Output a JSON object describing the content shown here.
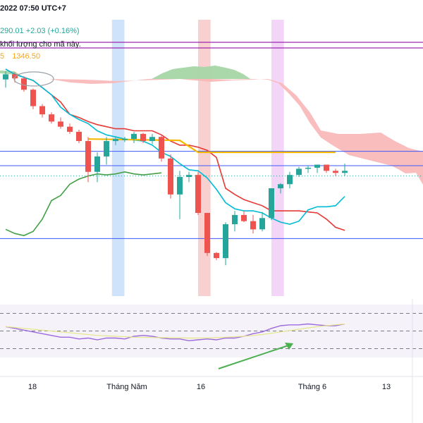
{
  "header": {
    "date_text": "2022 07:50 UTC+7",
    "price_text": "290.01  +2.03 (+0.16%)",
    "notice_text": "khối lượng cho mã này.",
    "ma_prefix": "5",
    "ma_value": "1346.50",
    "ma_color": "#f5a623"
  },
  "colors": {
    "up": "#26a69a",
    "down": "#ef5350",
    "tenkan": "#00bcd4",
    "kijun": "#e53935",
    "senkou_b_flat": "#f5b800",
    "chikou": "#43a047",
    "rsi": "#9c6ade",
    "rsi_ma": "#e6e68a",
    "cloud_bull": "#a5d6a7",
    "cloud_bear": "#f8b6b6",
    "arrow": "#4caf50"
  },
  "chart_data": [
    {
      "type": "candlestick",
      "title": "",
      "x_tick_labels": [
        "18",
        "Tháng Năm",
        "16",
        "Tháng 6",
        "13"
      ],
      "candles": [
        {
          "o": 1326,
          "h": 1334,
          "l": 1318,
          "c": 1331
        },
        {
          "o": 1331,
          "h": 1333,
          "l": 1323,
          "c": 1327
        },
        {
          "o": 1327,
          "h": 1329,
          "l": 1314,
          "c": 1316
        },
        {
          "o": 1316,
          "h": 1317,
          "l": 1297,
          "c": 1300
        },
        {
          "o": 1300,
          "h": 1302,
          "l": 1289,
          "c": 1292
        },
        {
          "o": 1292,
          "h": 1294,
          "l": 1283,
          "c": 1285
        },
        {
          "o": 1285,
          "h": 1289,
          "l": 1278,
          "c": 1280
        },
        {
          "o": 1280,
          "h": 1283,
          "l": 1273,
          "c": 1275
        },
        {
          "o": 1275,
          "h": 1277,
          "l": 1264,
          "c": 1266
        },
        {
          "o": 1266,
          "h": 1270,
          "l": 1226,
          "c": 1236
        },
        {
          "o": 1236,
          "h": 1255,
          "l": 1226,
          "c": 1251
        },
        {
          "o": 1251,
          "h": 1270,
          "l": 1243,
          "c": 1266
        },
        {
          "o": 1266,
          "h": 1270,
          "l": 1262,
          "c": 1268
        },
        {
          "o": 1267,
          "h": 1270,
          "l": 1265,
          "c": 1268
        },
        {
          "o": 1268,
          "h": 1275,
          "l": 1264,
          "c": 1273
        },
        {
          "o": 1273,
          "h": 1274,
          "l": 1264,
          "c": 1266
        },
        {
          "o": 1266,
          "h": 1273,
          "l": 1263,
          "c": 1270
        },
        {
          "o": 1270,
          "h": 1271,
          "l": 1246,
          "c": 1249
        },
        {
          "o": 1249,
          "h": 1253,
          "l": 1210,
          "c": 1214
        },
        {
          "o": 1214,
          "h": 1237,
          "l": 1190,
          "c": 1231
        },
        {
          "o": 1231,
          "h": 1236,
          "l": 1226,
          "c": 1233
        },
        {
          "o": 1233,
          "h": 1236,
          "l": 1194,
          "c": 1196
        },
        {
          "o": 1196,
          "h": 1196,
          "l": 1154,
          "c": 1157
        },
        {
          "o": 1157,
          "h": 1158,
          "l": 1150,
          "c": 1152
        },
        {
          "o": 1152,
          "h": 1187,
          "l": 1145,
          "c": 1185
        },
        {
          "o": 1185,
          "h": 1198,
          "l": 1178,
          "c": 1194
        },
        {
          "o": 1194,
          "h": 1198,
          "l": 1187,
          "c": 1188
        },
        {
          "o": 1188,
          "h": 1194,
          "l": 1176,
          "c": 1180
        },
        {
          "o": 1180,
          "h": 1197,
          "l": 1178,
          "c": 1191
        },
        {
          "o": 1191,
          "h": 1220,
          "l": 1189,
          "c": 1220
        },
        {
          "o": 1220,
          "h": 1225,
          "l": 1215,
          "c": 1224
        },
        {
          "o": 1224,
          "h": 1236,
          "l": 1220,
          "c": 1233
        },
        {
          "o": 1233,
          "h": 1241,
          "l": 1231,
          "c": 1239
        },
        {
          "o": 1239,
          "h": 1242,
          "l": 1235,
          "c": 1240
        },
        {
          "o": 1240,
          "h": 1243,
          "l": 1235,
          "c": 1243
        },
        {
          "o": 1243,
          "h": 1243,
          "l": 1235,
          "c": 1237
        },
        {
          "o": 1237,
          "h": 1239,
          "l": 1232,
          "c": 1235
        },
        {
          "o": 1235,
          "h": 1244,
          "l": 1232,
          "c": 1237
        }
      ],
      "tenkan": [
        1336,
        1331,
        1328,
        1325,
        1318,
        1311,
        1299,
        1292,
        1287,
        1283,
        1276,
        1272,
        1270,
        1268,
        1267,
        1266,
        1262,
        1255,
        1251,
        1244,
        1238,
        1237,
        1230,
        1219,
        1206,
        1200,
        1198,
        1198,
        1196,
        1191,
        1187,
        1185,
        1188,
        1199,
        1202,
        1202,
        1203,
        1212
      ],
      "kijun": [
        1336,
        1331,
        1328,
        1325,
        1318,
        1311,
        1304,
        1292,
        1289,
        1285,
        1282,
        1280,
        1278,
        1278,
        1276,
        1276,
        1276,
        1272,
        1266,
        1262,
        1262,
        1260,
        1257,
        1250,
        1220,
        1214,
        1209,
        1206,
        1203,
        1198,
        1198,
        1198,
        1198,
        1197,
        1196,
        1190,
        1182,
        1179
      ],
      "chikou": [
        1180,
        1176,
        1174,
        1178,
        1190,
        1208,
        1213,
        1224,
        1229,
        1232,
        1234,
        1233,
        1234,
        1236,
        1234,
        1233,
        1234,
        1235
      ],
      "senkou_b_flat": 1268,
      "hlines": [
        1256,
        1242,
        1232,
        1171
      ],
      "vbands": [
        {
          "from_index": 11.6,
          "to_index": 12.5,
          "color": "#cfe3fa"
        },
        {
          "from_index": 21.0,
          "to_index": 21.9,
          "color": "#f9d0d0"
        },
        {
          "from_index": 29.0,
          "to_index": 29.9,
          "color": "#f3d5f7"
        }
      ],
      "price_range": [
        1115,
        1345
      ]
    },
    {
      "type": "line",
      "title": "",
      "series": [
        {
          "key": "rsi",
          "values": [
            55,
            53,
            51,
            49,
            47,
            45,
            43,
            43,
            41,
            42,
            40,
            42,
            42,
            41,
            44,
            45,
            44,
            42,
            41,
            41,
            39,
            40,
            41,
            40,
            42,
            42,
            44,
            47,
            49,
            53,
            56,
            57,
            57,
            58,
            57,
            56,
            56,
            58
          ]
        },
        {
          "key": "rsi_ma",
          "values": [
            55,
            54,
            53,
            52,
            51,
            50,
            49,
            48,
            47,
            46,
            45,
            44.5,
            44,
            43.5,
            43,
            42.8,
            42.6,
            42.5,
            42.3,
            42.2,
            42,
            42,
            42.2,
            42.5,
            43,
            43.5,
            44,
            45,
            46,
            47.5,
            49,
            50.5,
            52,
            53.5,
            55,
            56,
            57,
            58
          ]
        }
      ],
      "levels": [
        70,
        50,
        30
      ],
      "range": [
        20,
        80
      ]
    }
  ]
}
